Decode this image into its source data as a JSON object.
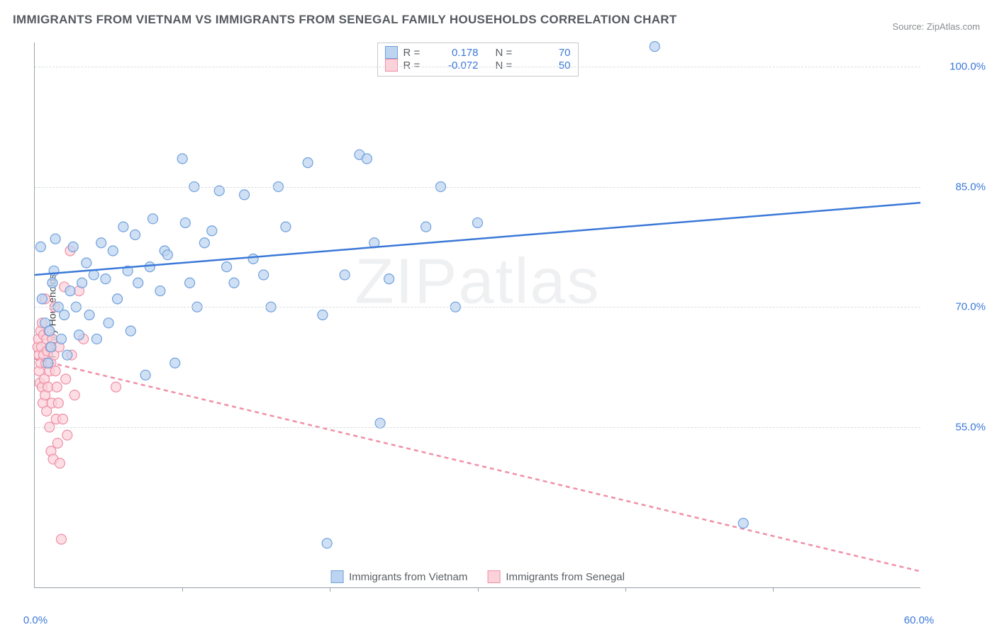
{
  "title": "IMMIGRANTS FROM VIETNAM VS IMMIGRANTS FROM SENEGAL FAMILY HOUSEHOLDS CORRELATION CHART",
  "source": "Source: ZipAtlas.com",
  "y_axis_label": "Family Households",
  "watermark": "ZIPatlas",
  "chart": {
    "type": "scatter-with-trend",
    "xlim": [
      0,
      60
    ],
    "ylim": [
      35,
      103
    ],
    "x_ticks": [
      0,
      60
    ],
    "x_tick_minor": [
      10,
      20,
      30,
      40,
      50
    ],
    "y_ticks": [
      55,
      70,
      85,
      100
    ],
    "x_tick_suffix": "%",
    "y_tick_suffix": "%",
    "grid_color": "#d9dce0",
    "axis_color": "#9aa0a6",
    "background_color": "#ffffff",
    "title_color": "#555a5f",
    "tick_label_color": "#3b78d8",
    "tick_label_fontsize": 15,
    "title_fontsize": 17,
    "marker_radius": 7,
    "marker_stroke_width": 1.2,
    "trend_line_width": 2.5
  },
  "series": {
    "vietnam": {
      "label": "Immigrants from Vietnam",
      "fill_color": "#bcd4f0",
      "stroke_color": "#6fa0dd",
      "trend_color": "#3b78d8",
      "trend_style": "solid",
      "r": 0.178,
      "n": 70,
      "trend": {
        "x1": 0,
        "y1": 74,
        "x2": 60,
        "y2": 83
      },
      "points": [
        [
          0.4,
          77.5
        ],
        [
          0.5,
          71
        ],
        [
          0.7,
          68
        ],
        [
          0.9,
          63
        ],
        [
          1.0,
          67
        ],
        [
          1.1,
          65
        ],
        [
          1.2,
          73
        ],
        [
          1.4,
          78.5
        ],
        [
          1.6,
          70
        ],
        [
          1.8,
          66
        ],
        [
          2.0,
          69
        ],
        [
          2.2,
          64
        ],
        [
          2.4,
          72
        ],
        [
          2.6,
          77.5
        ],
        [
          2.8,
          70
        ],
        [
          3.0,
          66.5
        ],
        [
          3.2,
          73
        ],
        [
          3.5,
          75.5
        ],
        [
          3.7,
          69
        ],
        [
          4.0,
          74
        ],
        [
          4.2,
          66
        ],
        [
          4.5,
          78
        ],
        [
          4.8,
          73.5
        ],
        [
          5.0,
          68
        ],
        [
          5.3,
          77
        ],
        [
          5.6,
          71
        ],
        [
          6.0,
          80
        ],
        [
          6.3,
          74.5
        ],
        [
          6.5,
          67
        ],
        [
          6.8,
          79
        ],
        [
          7.0,
          73
        ],
        [
          7.5,
          61.5
        ],
        [
          7.8,
          75
        ],
        [
          8.0,
          81
        ],
        [
          8.5,
          72
        ],
        [
          8.8,
          77
        ],
        [
          9.0,
          76.5
        ],
        [
          9.5,
          63
        ],
        [
          10.0,
          88.5
        ],
        [
          10.2,
          80.5
        ],
        [
          10.5,
          73
        ],
        [
          10.8,
          85
        ],
        [
          11.0,
          70
        ],
        [
          11.5,
          78
        ],
        [
          12.0,
          79.5
        ],
        [
          12.5,
          84.5
        ],
        [
          13.0,
          75
        ],
        [
          13.5,
          73
        ],
        [
          14.2,
          84
        ],
        [
          14.8,
          76
        ],
        [
          15.5,
          74
        ],
        [
          16.0,
          70
        ],
        [
          16.5,
          85
        ],
        [
          17.0,
          80
        ],
        [
          18.5,
          88
        ],
        [
          19.5,
          69
        ],
        [
          19.8,
          40.5
        ],
        [
          21.0,
          74
        ],
        [
          22.0,
          89
        ],
        [
          22.5,
          88.5
        ],
        [
          23.0,
          78
        ],
        [
          23.4,
          55.5
        ],
        [
          24.0,
          73.5
        ],
        [
          26.5,
          80
        ],
        [
          27.5,
          85
        ],
        [
          28.5,
          70
        ],
        [
          30.0,
          80.5
        ],
        [
          42.0,
          102.5
        ],
        [
          48.0,
          43
        ],
        [
          1.3,
          74.5
        ]
      ]
    },
    "senegal": {
      "label": "Immigrants from Senegal",
      "fill_color": "#fbd1da",
      "stroke_color": "#ef8fa6",
      "trend_color": "#ef8fa6",
      "trend_style": "dashed",
      "r": -0.072,
      "n": 50,
      "trend": {
        "x1": 0,
        "y1": 63.5,
        "x2": 60,
        "y2": 37
      },
      "points": [
        [
          0.2,
          65
        ],
        [
          0.25,
          66
        ],
        [
          0.3,
          64
        ],
        [
          0.3,
          62
        ],
        [
          0.35,
          60.5
        ],
        [
          0.4,
          67
        ],
        [
          0.4,
          63
        ],
        [
          0.45,
          65
        ],
        [
          0.5,
          60
        ],
        [
          0.5,
          68
        ],
        [
          0.55,
          58
        ],
        [
          0.6,
          66.5
        ],
        [
          0.6,
          64
        ],
        [
          0.65,
          61
        ],
        [
          0.7,
          71
        ],
        [
          0.7,
          59
        ],
        [
          0.75,
          63
        ],
        [
          0.8,
          66
        ],
        [
          0.8,
          57
        ],
        [
          0.85,
          64.5
        ],
        [
          0.9,
          60
        ],
        [
          0.95,
          67
        ],
        [
          1.0,
          62
        ],
        [
          1.0,
          55
        ],
        [
          1.05,
          65
        ],
        [
          1.1,
          52
        ],
        [
          1.1,
          63
        ],
        [
          1.15,
          58
        ],
        [
          1.2,
          66
        ],
        [
          1.25,
          51
        ],
        [
          1.3,
          64
        ],
        [
          1.35,
          70
        ],
        [
          1.4,
          62
        ],
        [
          1.45,
          56
        ],
        [
          1.5,
          60
        ],
        [
          1.55,
          53
        ],
        [
          1.6,
          58
        ],
        [
          1.65,
          65
        ],
        [
          1.7,
          50.5
        ],
        [
          1.8,
          41
        ],
        [
          1.9,
          56
        ],
        [
          2.0,
          72.5
        ],
        [
          2.1,
          61
        ],
        [
          2.2,
          54
        ],
        [
          2.4,
          77
        ],
        [
          2.5,
          64
        ],
        [
          2.7,
          59
        ],
        [
          3.0,
          72
        ],
        [
          3.3,
          66
        ],
        [
          5.5,
          60
        ]
      ]
    }
  },
  "legend_top_labels": {
    "r_prefix": "R =",
    "n_prefix": "N ="
  },
  "x_tick_labels": {
    "left": "0.0%",
    "right": "60.0%"
  },
  "y_tick_labels": [
    "55.0%",
    "70.0%",
    "85.0%",
    "100.0%"
  ]
}
